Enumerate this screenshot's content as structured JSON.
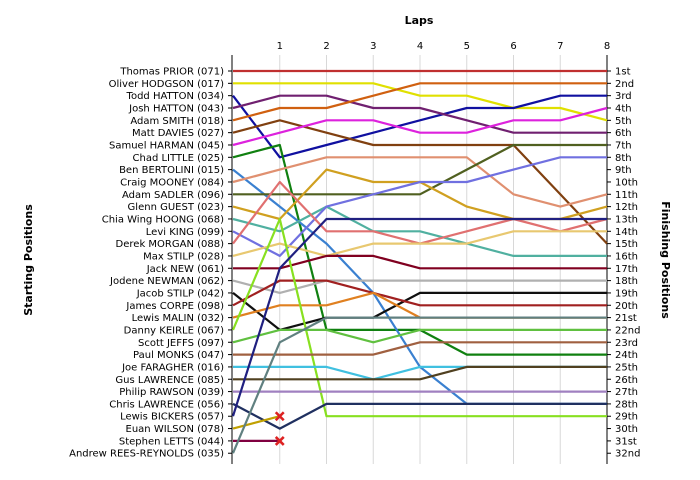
{
  "chart_data": {
    "type": "line",
    "title": "",
    "xlabel": "Laps",
    "ylabel_left": "Starting Positions",
    "ylabel_right": "Finishing Positions",
    "x": [
      0,
      1,
      2,
      3,
      4,
      5,
      6,
      7,
      8
    ],
    "x_tick_labels": [
      "1",
      "2",
      "3",
      "4",
      "5",
      "6",
      "7",
      "8"
    ],
    "ylim": [
      1,
      32
    ],
    "y_inverted": true,
    "grid": true,
    "starting_labels": [
      "Thomas PRIOR (071)",
      "Oliver HODGSON (017)",
      "Todd HATTON (034)",
      "Josh HATTON (043)",
      "Adam SMITH (018)",
      "Matt DAVIES (027)",
      "Samuel HARMAN (045)",
      "Chad LITTLE (025)",
      "Ben BERTOLINI (015)",
      "Craig MOONEY (084)",
      "Adam SADLER (096)",
      "Glenn GUEST (023)",
      "Chia Wing HOONG (068)",
      "Levi KING (099)",
      "Derek MORGAN (088)",
      "Max STILP (028)",
      "Jack NEW (061)",
      "Jodene NEWMAN (062)",
      "Jacob STILP (042)",
      "James CORPE (098)",
      "Lewis MALIN (032)",
      "Danny KEIRLE (067)",
      "Scott JEFFS (097)",
      "Paul MONKS (047)",
      "Joe FARAGHER (016)",
      "Gus LAWRENCE (085)",
      "Philip RAWSON (039)",
      "Chris LAWRENCE (056)",
      "Lewis BICKERS (057)",
      "Euan WILSON (078)",
      "Stephen LETTS (044)",
      "Andrew REES-REYNOLDS (035)"
    ],
    "finishing_labels": [
      "1st",
      "2nd",
      "3rd",
      "4th",
      "5th",
      "6th",
      "7th",
      "8th",
      "9th",
      "10th",
      "11th",
      "12th",
      "13th",
      "14th",
      "15th",
      "16th",
      "17th",
      "18th",
      "19th",
      "20th",
      "21st",
      "22nd",
      "23rd",
      "24th",
      "25th",
      "26th",
      "27th",
      "28th",
      "29th",
      "30th",
      "31st",
      "32nd"
    ],
    "retired_marker_color": "#dd2222",
    "series": [
      {
        "color": "#c03030",
        "values": [
          1,
          1,
          1,
          1,
          1,
          1,
          1,
          1,
          1
        ]
      },
      {
        "color": "#e0e000",
        "values": [
          2,
          2,
          2,
          2,
          3,
          3,
          4,
          4,
          5
        ]
      },
      {
        "color": "#1010a0",
        "values": [
          3,
          8,
          7,
          6,
          5,
          4,
          4,
          3,
          3
        ]
      },
      {
        "color": "#702070",
        "values": [
          4,
          3,
          3,
          4,
          4,
          5,
          6,
          6,
          6
        ]
      },
      {
        "color": "#d06010",
        "values": [
          5,
          4,
          4,
          3,
          2,
          2,
          2,
          2,
          2
        ]
      },
      {
        "color": "#804010",
        "values": [
          6,
          5,
          6,
          7,
          7,
          7,
          7,
          11,
          15
        ]
      },
      {
        "color": "#dd22dd",
        "values": [
          7,
          6,
          5,
          5,
          6,
          6,
          5,
          5,
          4
        ]
      },
      {
        "color": "#108010",
        "values": [
          8,
          7,
          22,
          22,
          22,
          24,
          24,
          24,
          24
        ]
      },
      {
        "color": "#3a80d0",
        "values": [
          9,
          12,
          15,
          19,
          25,
          28,
          28,
          28,
          28
        ]
      },
      {
        "color": "#e09070",
        "values": [
          10,
          9,
          8,
          8,
          8,
          8,
          11,
          12,
          11
        ]
      },
      {
        "color": "#506020",
        "values": [
          11,
          11,
          11,
          11,
          11,
          9,
          7,
          7,
          7
        ]
      },
      {
        "color": "#d0a020",
        "values": [
          12,
          13,
          9,
          10,
          10,
          12,
          13,
          13,
          12
        ]
      },
      {
        "color": "#50b0a0",
        "values": [
          13,
          14,
          12,
          14,
          14,
          15,
          16,
          16,
          16
        ]
      },
      {
        "color": "#7070e0",
        "values": [
          14,
          16,
          12,
          11,
          10,
          10,
          9,
          8,
          8
        ]
      },
      {
        "color": "#e07070",
        "values": [
          15,
          10,
          14,
          14,
          15,
          14,
          13,
          14,
          13
        ]
      },
      {
        "color": "#e8c870",
        "values": [
          16,
          15,
          16,
          15,
          15,
          15,
          14,
          14,
          14
        ]
      },
      {
        "color": "#800020",
        "values": [
          17,
          17,
          16,
          16,
          17,
          17,
          17,
          17,
          17
        ]
      },
      {
        "color": "#b0b0b0",
        "values": [
          18,
          19,
          18,
          18,
          18,
          18,
          18,
          18,
          18
        ]
      },
      {
        "color": "#101010",
        "values": [
          19,
          22,
          21,
          21,
          19,
          19,
          19,
          19,
          19
        ]
      },
      {
        "color": "#a02020",
        "values": [
          20,
          18,
          18,
          19,
          20,
          20,
          20,
          20,
          20
        ]
      },
      {
        "color": "#e08020",
        "values": [
          21,
          20,
          20,
          19,
          21,
          21,
          21,
          21,
          21
        ]
      },
      {
        "color": "#88e020",
        "values": [
          22,
          13,
          29,
          29,
          29,
          29,
          29,
          29,
          29
        ]
      },
      {
        "color": "#60c040",
        "values": [
          23,
          22,
          22,
          23,
          22,
          22,
          22,
          22,
          22
        ]
      },
      {
        "color": "#a06040",
        "values": [
          24,
          24,
          24,
          24,
          23,
          23,
          23,
          23,
          23
        ]
      },
      {
        "color": "#40c0e0",
        "values": [
          25,
          25,
          25,
          26,
          25,
          25,
          25,
          25,
          25
        ]
      },
      {
        "color": "#504020",
        "values": [
          26,
          26,
          26,
          26,
          26,
          25,
          25,
          25,
          25
        ]
      },
      {
        "color": "#a080c0",
        "values": [
          27,
          27,
          27,
          27,
          27,
          27,
          27,
          27,
          27
        ]
      },
      {
        "color": "#203060",
        "values": [
          28,
          30,
          28,
          28,
          28,
          28,
          28,
          28,
          28
        ]
      },
      {
        "color": "#202080",
        "values": [
          29,
          17,
          13,
          13,
          13,
          13,
          13,
          13,
          13
        ]
      },
      {
        "color": "#c0a000",
        "values": [
          30,
          29,
          null,
          null,
          null,
          null,
          null,
          null,
          null
        ],
        "retired": true
      },
      {
        "color": "#800040",
        "values": [
          31,
          31,
          null,
          null,
          null,
          null,
          null,
          null,
          null
        ],
        "retired": true
      },
      {
        "color": "#608080",
        "values": [
          32,
          23,
          21,
          21,
          21,
          21,
          21,
          21,
          21
        ]
      }
    ]
  }
}
